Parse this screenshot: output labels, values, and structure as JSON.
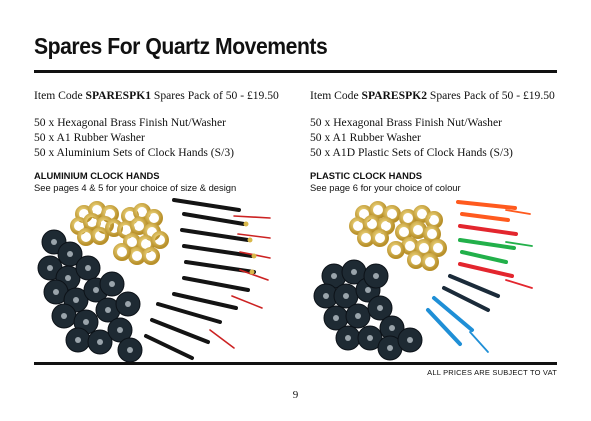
{
  "title": "Spares For Quartz Movements",
  "left": {
    "code_prefix": "Item Code ",
    "code": "SPARESPK1",
    "code_suffix": " Spares Pack of 50 - £19.50",
    "items": [
      "50 x Hexagonal Brass Finish Nut/Washer",
      "50 x A1 Rubber Washer",
      "50 x Aluminium Sets of Clock Hands (S/3)"
    ],
    "heading": "ALUMINIUM CLOCK HANDS",
    "note": "See pages 4 & 5 for your choice of size & design"
  },
  "right": {
    "code_prefix": "Item Code ",
    "code": "SPARESPK2",
    "code_suffix": " Spares Pack of 50 - £19.50",
    "items": [
      "50 x Hexagonal Brass Finish Nut/Washer",
      "50 x A1 Rubber Washer",
      "50 x A1D Plastic Sets of Clock Hands (S/3)"
    ],
    "heading": "PLASTIC CLOCK HANDS",
    "note": "See page 6 for your choice of colour"
  },
  "footer": {
    "vat": "ALL PRICES ARE SUBJECT TO VAT",
    "page_number": "9"
  },
  "colors": {
    "brass": "#d9b84a",
    "rubber": "#1e2a33",
    "black_hand": "#141414",
    "second_hand": "#cc2222",
    "plastic_hands": [
      "#ff5a1e",
      "#e3262e",
      "#22b04a",
      "#1f8fd6",
      "#1b2b3a"
    ]
  }
}
